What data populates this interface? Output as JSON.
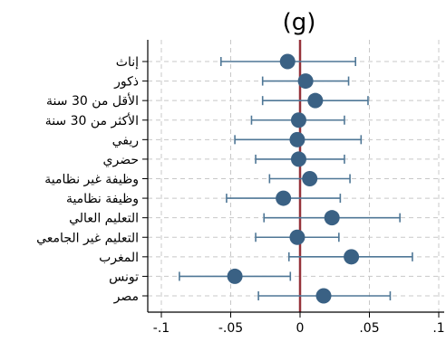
{
  "chart_data": {
    "type": "scatter",
    "title": "(g)",
    "xlabel": "",
    "ylabel": "",
    "xlim": [
      -0.1,
      0.1
    ],
    "xticks": [
      -0.1,
      -0.05,
      0,
      0.05,
      0.1
    ],
    "xtick_labels": [
      "-.1",
      "-.05",
      "0",
      ".05",
      ".1"
    ],
    "reference_line": 0,
    "grid": true,
    "colors": {
      "point": "#3a6184",
      "whisker": "#4f7796",
      "reference": "#96323a",
      "grid": "#c8c8c8"
    },
    "categories": [
      "إناث",
      "ذكور",
      "الأقل من 30 سنة",
      "الأكثر من 30 سنة",
      "ريفي",
      "حضري",
      "وظيفة غير نظامية",
      "وظيفة نظامية",
      "التعليم العالي",
      "التعليم غير الجامعي",
      "المغرب",
      "تونس",
      "مصر"
    ],
    "estimates": [
      -0.009,
      0.004,
      0.011,
      -0.001,
      -0.002,
      -0.001,
      0.007,
      -0.012,
      0.023,
      -0.002,
      0.037,
      -0.047,
      0.017
    ],
    "ci_low": [
      -0.057,
      -0.027,
      -0.027,
      -0.035,
      -0.047,
      -0.032,
      -0.022,
      -0.053,
      -0.026,
      -0.032,
      -0.008,
      -0.087,
      -0.03
    ],
    "ci_high": [
      0.04,
      0.035,
      0.049,
      0.032,
      0.044,
      0.032,
      0.036,
      0.029,
      0.072,
      0.028,
      0.081,
      -0.007,
      0.065
    ]
  }
}
